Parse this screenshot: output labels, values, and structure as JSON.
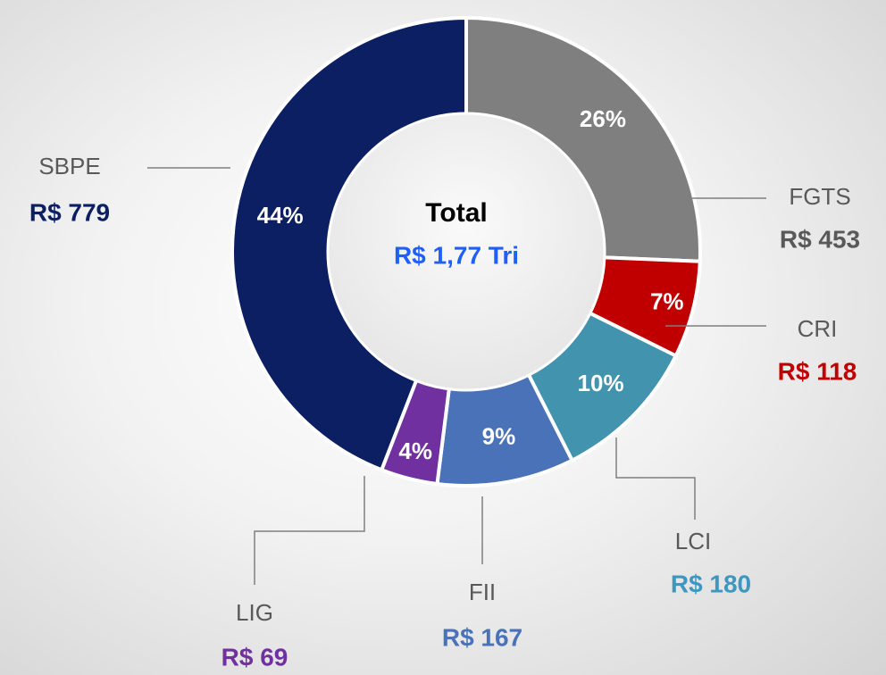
{
  "chart_data": {
    "type": "pie",
    "categories": [
      "FGTS",
      "CRI",
      "LCI",
      "FII",
      "LIG",
      "SBPE"
    ],
    "values": [
      453,
      118,
      180,
      167,
      69,
      779
    ],
    "value_labels": [
      "R$ 453",
      "R$ 118",
      "R$ 180",
      "R$ 167",
      "R$ 69",
      "R$ 779"
    ],
    "percentages": [
      26,
      7,
      10,
      9,
      4,
      44
    ],
    "percentage_labels": [
      "26%",
      "7%",
      "10%",
      "9%",
      "4%",
      "44%"
    ],
    "colors": [
      "#7f7f7f",
      "#c00000",
      "#4293ae",
      "#4a72b8",
      "#7030a0",
      "#0c1f63"
    ],
    "label_colors": [
      "#595959",
      "#c00000",
      "#3d97c0",
      "#4a72b8",
      "#7030a0",
      "#0c1f63"
    ],
    "center_title": "Total",
    "center_label": "R$ 1,77 Tri"
  }
}
